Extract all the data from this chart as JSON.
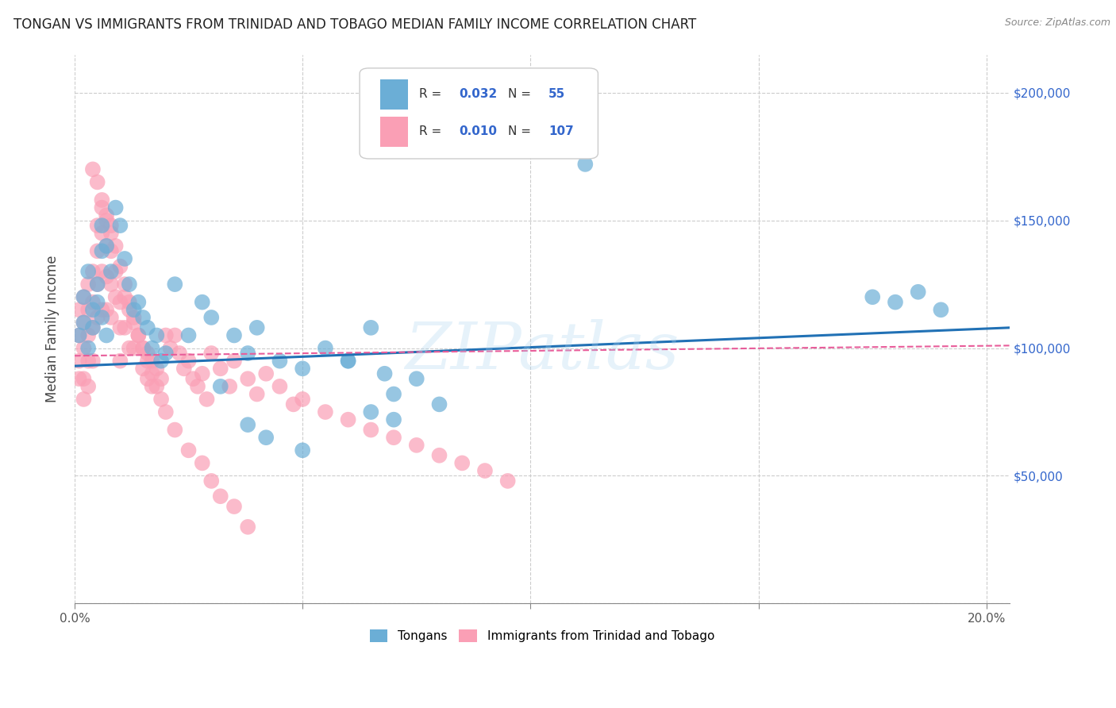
{
  "title": "TONGAN VS IMMIGRANTS FROM TRINIDAD AND TOBAGO MEDIAN FAMILY INCOME CORRELATION CHART",
  "source": "Source: ZipAtlas.com",
  "ylabel": "Median Family Income",
  "legend_label_1": "Tongans",
  "legend_label_2": "Immigrants from Trinidad and Tobago",
  "r1": 0.032,
  "n1": 55,
  "r2": 0.01,
  "n2": 107,
  "color_blue": "#6baed6",
  "color_pink": "#fa9fb5",
  "color_blue_line": "#2171b5",
  "color_pink_line": "#e85d9a",
  "background_color": "#ffffff",
  "grid_color": "#cccccc",
  "blue_x": [
    0.001,
    0.002,
    0.002,
    0.003,
    0.003,
    0.004,
    0.004,
    0.005,
    0.005,
    0.006,
    0.006,
    0.006,
    0.007,
    0.007,
    0.008,
    0.009,
    0.01,
    0.011,
    0.012,
    0.013,
    0.014,
    0.015,
    0.016,
    0.017,
    0.018,
    0.019,
    0.02,
    0.022,
    0.025,
    0.028,
    0.03,
    0.032,
    0.035,
    0.038,
    0.04,
    0.045,
    0.05,
    0.055,
    0.06,
    0.065,
    0.068,
    0.07,
    0.075,
    0.08,
    0.038,
    0.042,
    0.05,
    0.06,
    0.065,
    0.07,
    0.175,
    0.18,
    0.185,
    0.19,
    0.112
  ],
  "blue_y": [
    105000,
    120000,
    110000,
    100000,
    130000,
    115000,
    108000,
    125000,
    118000,
    148000,
    138000,
    112000,
    140000,
    105000,
    130000,
    155000,
    148000,
    135000,
    125000,
    115000,
    118000,
    112000,
    108000,
    100000,
    105000,
    95000,
    98000,
    125000,
    105000,
    118000,
    112000,
    85000,
    105000,
    98000,
    108000,
    95000,
    92000,
    100000,
    95000,
    108000,
    90000,
    82000,
    88000,
    78000,
    70000,
    65000,
    60000,
    95000,
    75000,
    72000,
    120000,
    118000,
    122000,
    115000,
    172000
  ],
  "pink_x": [
    0.001,
    0.001,
    0.001,
    0.001,
    0.002,
    0.002,
    0.002,
    0.002,
    0.002,
    0.003,
    0.003,
    0.003,
    0.003,
    0.003,
    0.004,
    0.004,
    0.004,
    0.004,
    0.005,
    0.005,
    0.005,
    0.005,
    0.006,
    0.006,
    0.006,
    0.006,
    0.007,
    0.007,
    0.007,
    0.007,
    0.008,
    0.008,
    0.008,
    0.008,
    0.009,
    0.009,
    0.01,
    0.01,
    0.01,
    0.011,
    0.011,
    0.012,
    0.012,
    0.013,
    0.013,
    0.014,
    0.015,
    0.015,
    0.016,
    0.016,
    0.017,
    0.017,
    0.018,
    0.019,
    0.02,
    0.021,
    0.022,
    0.023,
    0.024,
    0.025,
    0.026,
    0.027,
    0.028,
    0.029,
    0.03,
    0.032,
    0.034,
    0.035,
    0.038,
    0.04,
    0.042,
    0.045,
    0.048,
    0.05,
    0.055,
    0.06,
    0.065,
    0.07,
    0.075,
    0.08,
    0.085,
    0.09,
    0.095,
    0.004,
    0.005,
    0.006,
    0.007,
    0.008,
    0.009,
    0.01,
    0.011,
    0.012,
    0.013,
    0.014,
    0.015,
    0.016,
    0.017,
    0.018,
    0.019,
    0.02,
    0.022,
    0.025,
    0.028,
    0.03,
    0.032,
    0.035,
    0.038
  ],
  "pink_y": [
    95000,
    105000,
    115000,
    88000,
    110000,
    120000,
    100000,
    88000,
    80000,
    115000,
    125000,
    105000,
    95000,
    85000,
    130000,
    118000,
    108000,
    95000,
    148000,
    138000,
    125000,
    112000,
    155000,
    145000,
    130000,
    115000,
    150000,
    140000,
    128000,
    115000,
    145000,
    138000,
    125000,
    112000,
    130000,
    120000,
    118000,
    108000,
    95000,
    120000,
    108000,
    115000,
    100000,
    112000,
    100000,
    105000,
    100000,
    92000,
    98000,
    88000,
    95000,
    85000,
    92000,
    88000,
    105000,
    100000,
    105000,
    98000,
    92000,
    95000,
    88000,
    85000,
    90000,
    80000,
    98000,
    92000,
    85000,
    95000,
    88000,
    82000,
    90000,
    85000,
    78000,
    80000,
    75000,
    72000,
    68000,
    65000,
    62000,
    58000,
    55000,
    52000,
    48000,
    170000,
    165000,
    158000,
    152000,
    148000,
    140000,
    132000,
    125000,
    118000,
    110000,
    105000,
    100000,
    95000,
    90000,
    85000,
    80000,
    75000,
    68000,
    60000,
    55000,
    48000,
    42000,
    38000,
    30000
  ]
}
